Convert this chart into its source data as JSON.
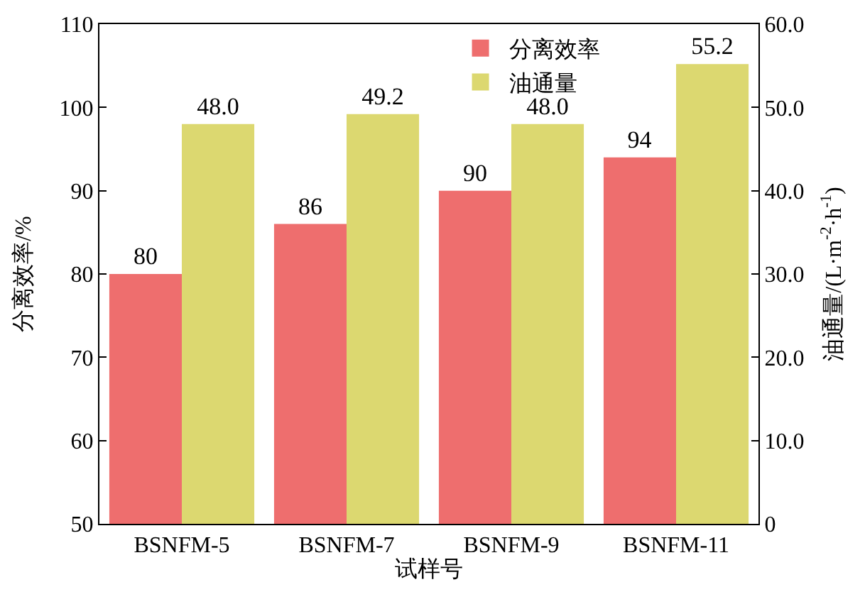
{
  "chart_data": {
    "type": "bar",
    "xlabel": "试样号",
    "ylabel": "分离效率/%",
    "y2label": "油通量/(L·m$^{-2}$·h$^{-1}$)",
    "categories": [
      "BSNFM-5",
      "BSNFM-7",
      "BSNFM-9",
      "BSNFM-11"
    ],
    "series": [
      {
        "name": "分离效率",
        "color": "#ee6e6e",
        "values": [
          80,
          86,
          90,
          94
        ],
        "value_labels": [
          "80",
          "86",
          "90",
          "94"
        ]
      },
      {
        "name": "油通量",
        "color": "#dcd870",
        "values": [
          48.0,
          49.2,
          48.0,
          55.2
        ],
        "axis": "y2",
        "value_labels": [
          "48.0",
          "49.2",
          "48.0",
          "55.2"
        ]
      }
    ],
    "ylim": [
      50,
      110
    ],
    "yticks": [
      50,
      60,
      70,
      80,
      90,
      100,
      110
    ],
    "y2lim": [
      0,
      60
    ],
    "y2ticks": [
      {
        "value": 0,
        "label": "0"
      },
      {
        "value": 10,
        "label": "10.0"
      },
      {
        "value": 20,
        "label": "20.0"
      },
      {
        "value": 30,
        "label": "30.0"
      },
      {
        "value": 40,
        "label": "40.0"
      },
      {
        "value": 50,
        "label": "50.0"
      },
      {
        "value": 60,
        "label": "60.0"
      }
    ],
    "legend": "top right"
  }
}
